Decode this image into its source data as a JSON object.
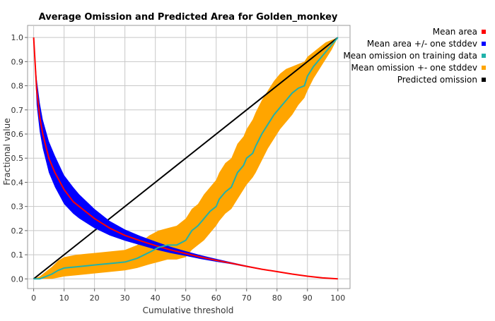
{
  "chart_data": {
    "type": "line",
    "title": "Average Omission and Predicted Area for Golden_monkey",
    "xlabel": "Cumulative threshold",
    "ylabel": "Fractional value",
    "xlim": [
      -2,
      104
    ],
    "ylim": [
      -0.04,
      1.05
    ],
    "xticks": [
      "0",
      "10",
      "20",
      "30",
      "40",
      "50",
      "60",
      "70",
      "80",
      "90",
      "100"
    ],
    "yticks": [
      "0.0",
      "0.1",
      "0.2",
      "0.3",
      "0.4",
      "0.5",
      "0.6",
      "0.7",
      "0.8",
      "0.9",
      "1.0"
    ],
    "grid": true,
    "legend_position": "right",
    "legend": [
      {
        "label": "Mean area",
        "color": "#ff0000"
      },
      {
        "label": "Mean area +/- one stddev",
        "color": "#0000ff"
      },
      {
        "label": "Mean omission on training data",
        "color": "#20b2aa"
      },
      {
        "label": "Mean omission +- one stddev",
        "color": "#ffa500"
      },
      {
        "label": "Predicted omission",
        "color": "#000000"
      }
    ],
    "series": [
      {
        "name": "Mean area",
        "color": "#ff0000",
        "x": [
          0,
          1,
          2,
          3,
          5,
          7,
          10,
          13,
          15,
          20,
          25,
          30,
          35,
          40,
          45,
          50,
          55,
          60,
          65,
          70,
          75,
          80,
          85,
          90,
          95,
          100
        ],
        "y": [
          1.0,
          0.78,
          0.67,
          0.6,
          0.5,
          0.44,
          0.37,
          0.32,
          0.3,
          0.25,
          0.21,
          0.18,
          0.158,
          0.138,
          0.12,
          0.105,
          0.09,
          0.077,
          0.065,
          0.052,
          0.04,
          0.03,
          0.02,
          0.011,
          0.004,
          0.0
        ]
      },
      {
        "name": "Mean area +/- one stddev",
        "color": "#0000ff",
        "x": [
          0,
          1,
          2,
          3,
          5,
          7,
          10,
          13,
          15,
          20,
          25,
          30,
          35,
          40,
          45,
          50,
          55,
          60,
          65,
          70,
          75,
          80,
          85,
          90,
          95,
          100
        ],
        "y_upper": [
          1.0,
          0.83,
          0.73,
          0.66,
          0.57,
          0.51,
          0.43,
          0.38,
          0.35,
          0.29,
          0.24,
          0.205,
          0.178,
          0.155,
          0.133,
          0.115,
          0.098,
          0.083,
          0.069,
          0.055,
          0.042,
          0.031,
          0.021,
          0.012,
          0.004,
          0.0
        ],
        "y_lower": [
          1.0,
          0.72,
          0.61,
          0.54,
          0.44,
          0.38,
          0.31,
          0.27,
          0.25,
          0.21,
          0.18,
          0.158,
          0.14,
          0.122,
          0.107,
          0.095,
          0.082,
          0.071,
          0.061,
          0.049,
          0.038,
          0.029,
          0.019,
          0.01,
          0.004,
          0.0
        ]
      },
      {
        "name": "Mean omission on training data",
        "color": "#20b2aa",
        "x": [
          0,
          2,
          4,
          6,
          8,
          10,
          14,
          18,
          22,
          26,
          30,
          34,
          38,
          41,
          44,
          47,
          50,
          52,
          54,
          56,
          58,
          60,
          61,
          63,
          65,
          67,
          69,
          70,
          72,
          73,
          75,
          77,
          79,
          81,
          83,
          85,
          87,
          89,
          90,
          92,
          94,
          96,
          98,
          100
        ],
        "y": [
          0.0,
          0.0,
          0.01,
          0.02,
          0.035,
          0.045,
          0.05,
          0.055,
          0.06,
          0.065,
          0.07,
          0.085,
          0.11,
          0.13,
          0.14,
          0.14,
          0.16,
          0.2,
          0.22,
          0.25,
          0.28,
          0.3,
          0.33,
          0.36,
          0.38,
          0.44,
          0.47,
          0.5,
          0.52,
          0.55,
          0.6,
          0.64,
          0.68,
          0.71,
          0.74,
          0.77,
          0.79,
          0.8,
          0.84,
          0.88,
          0.91,
          0.94,
          0.97,
          1.0
        ]
      },
      {
        "name": "Mean omission +- one stddev",
        "color": "#ffa500",
        "x": [
          0,
          2,
          4,
          6,
          8,
          10,
          14,
          18,
          22,
          26,
          30,
          34,
          38,
          41,
          44,
          47,
          50,
          52,
          54,
          56,
          58,
          60,
          61,
          63,
          65,
          67,
          69,
          70,
          72,
          73,
          75,
          77,
          79,
          81,
          83,
          85,
          87,
          89,
          90,
          92,
          94,
          96,
          98,
          100
        ],
        "y_upper": [
          0.0,
          0.01,
          0.03,
          0.05,
          0.075,
          0.09,
          0.1,
          0.105,
          0.11,
          0.115,
          0.12,
          0.14,
          0.18,
          0.2,
          0.21,
          0.22,
          0.25,
          0.29,
          0.31,
          0.35,
          0.38,
          0.41,
          0.44,
          0.48,
          0.5,
          0.56,
          0.59,
          0.62,
          0.66,
          0.69,
          0.74,
          0.78,
          0.82,
          0.85,
          0.87,
          0.88,
          0.89,
          0.9,
          0.92,
          0.94,
          0.96,
          0.98,
          0.99,
          1.0
        ],
        "y_lower": [
          0.0,
          0.0,
          0.0,
          0.0,
          0.005,
          0.01,
          0.015,
          0.02,
          0.025,
          0.03,
          0.035,
          0.045,
          0.06,
          0.07,
          0.08,
          0.08,
          0.09,
          0.12,
          0.14,
          0.16,
          0.19,
          0.22,
          0.24,
          0.27,
          0.29,
          0.33,
          0.37,
          0.39,
          0.42,
          0.44,
          0.49,
          0.54,
          0.58,
          0.62,
          0.65,
          0.68,
          0.72,
          0.75,
          0.78,
          0.83,
          0.87,
          0.91,
          0.95,
          1.0
        ]
      },
      {
        "name": "Predicted omission",
        "color": "#000000",
        "x": [
          0,
          100
        ],
        "y": [
          0,
          1
        ]
      }
    ]
  }
}
